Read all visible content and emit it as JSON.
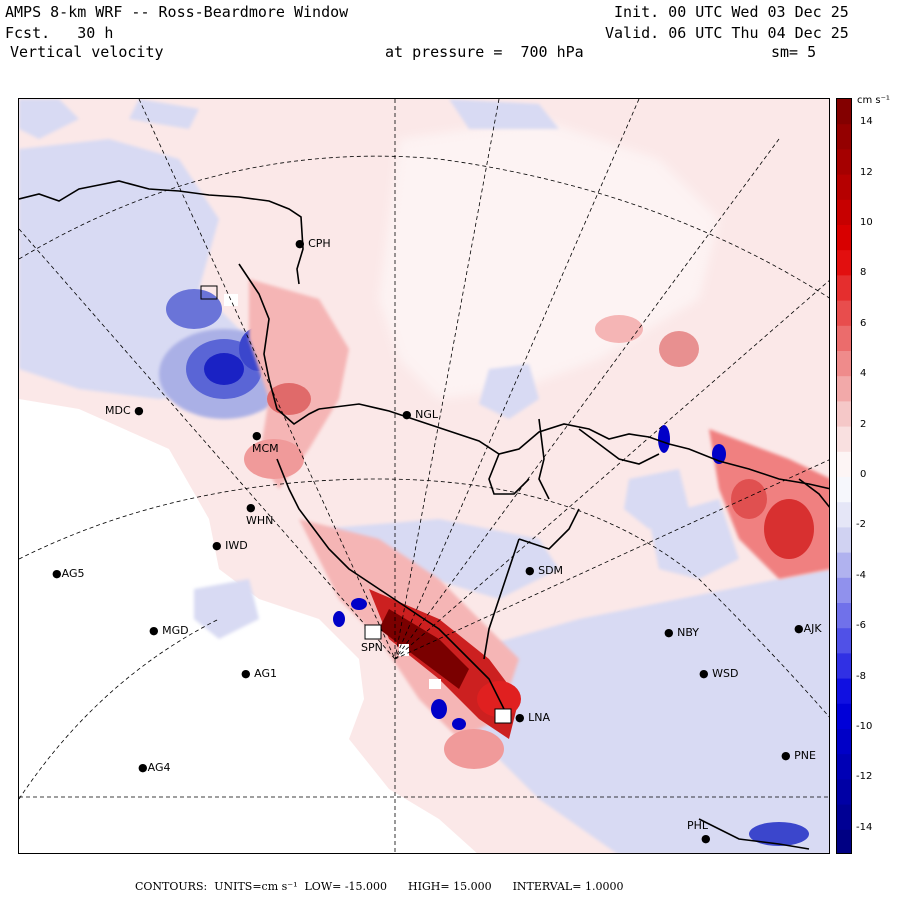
{
  "header": {
    "title": "AMPS 8-km WRF -- Ross-Beardmore Window",
    "fcst_label": "Fcst.",
    "fcst_value": "30 h",
    "variable": "Vertical velocity",
    "init": "Init. 00 UTC Wed 03 Dec 25",
    "valid": "Valid. 06 UTC Thu 04 Dec 25",
    "pressure_label": "at pressure =",
    "pressure_value": "700 hPa",
    "smoothing": "sm= 5"
  },
  "colorbar": {
    "units": "cm s⁻¹",
    "ticks": [
      "14",
      "12",
      "10",
      "8",
      "6",
      "4",
      "2",
      "0",
      "-2",
      "-4",
      "-6",
      "-8",
      "-10",
      "-12",
      "-14"
    ],
    "min": -15,
    "max": 15,
    "colors": {
      "dark_red": "#7a0000",
      "red": "#e00000",
      "light_red": "#f6d0d0",
      "neutral": "#ffffff",
      "light_blue": "#d8daf3",
      "blue": "#0000e0",
      "dark_blue": "#00007a"
    }
  },
  "stations": [
    {
      "id": "CPH",
      "label": "CPH"
    },
    {
      "id": "MDC",
      "label": "MDC"
    },
    {
      "id": "NGL",
      "label": "NGL"
    },
    {
      "id": "IWD",
      "label": "IWD"
    },
    {
      "id": "AG5",
      "label": "AG5"
    },
    {
      "id": "MGD",
      "label": "MGD"
    },
    {
      "id": "AG1",
      "label": "AG1"
    },
    {
      "id": "AG4",
      "label": "AG4"
    },
    {
      "id": "SDM",
      "label": "SDM"
    },
    {
      "id": "NBY",
      "label": "NBY"
    },
    {
      "id": "WSD",
      "label": "WSD"
    },
    {
      "id": "PNE",
      "label": "PNE"
    },
    {
      "id": "AJK",
      "label": "AJK"
    },
    {
      "id": "WHN",
      "label": "WHN"
    },
    {
      "id": "MCM",
      "label": "MCM"
    },
    {
      "id": "SPN",
      "label": "SPN"
    },
    {
      "id": "LNA",
      "label": "LNA"
    },
    {
      "id": "PHL",
      "label": "PHL"
    }
  ],
  "footer": {
    "contours": "CONTOURS:",
    "units": "UNITS=cm s⁻¹",
    "low": "LOW= -15.000",
    "high": "HIGH= 15.000",
    "interval": "INTERVAL= 1.0000"
  }
}
